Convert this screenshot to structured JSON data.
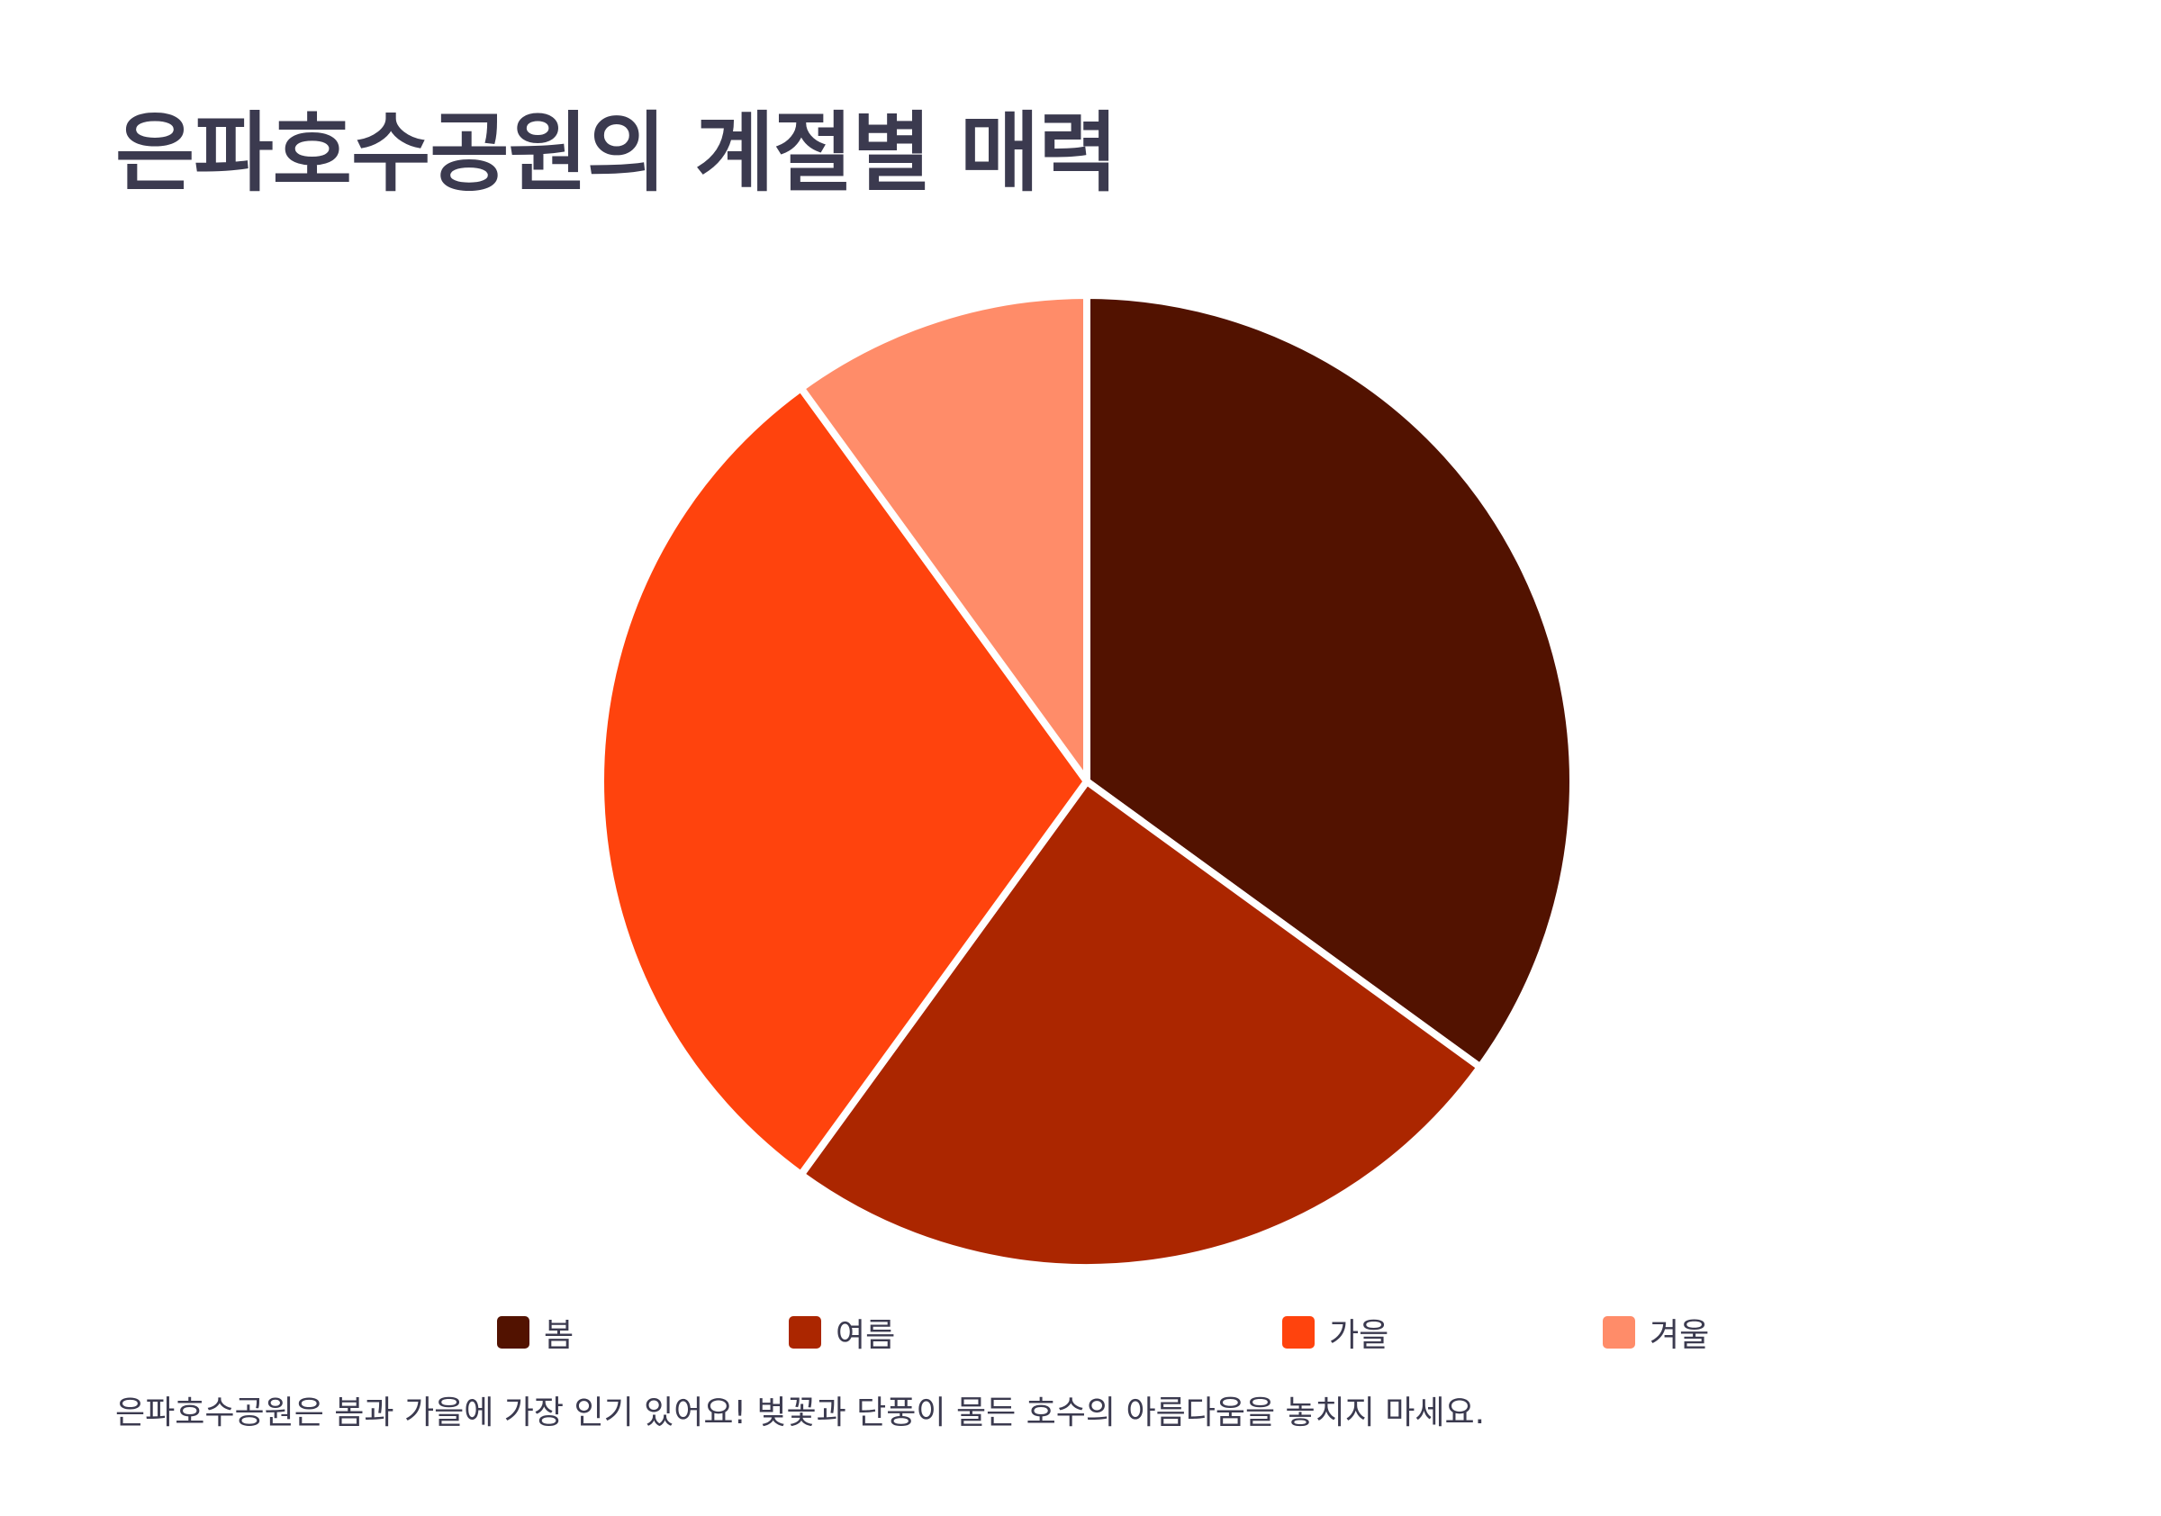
{
  "title": "은파호수공원의 계절별 매력",
  "footnote": "은파호수공원은 봄과 가을에 가장 인기 있어요! 벚꽃과 단풍이 물든 호수의 아름다움을 놓치지 마세요.",
  "chart_data": {
    "type": "pie",
    "title": "은파호수공원의 계절별 매력",
    "categories": [
      "봄",
      "여름",
      "가을",
      "겨울"
    ],
    "values": [
      35,
      25,
      30,
      10
    ],
    "colors": [
      "#521200",
      "#ab2600",
      "#ff430d",
      "#ff8c69"
    ],
    "start_angle": "12 o'clock",
    "direction": "clockwise",
    "legend_position": "bottom",
    "slice_border_color": "#ffffff"
  }
}
